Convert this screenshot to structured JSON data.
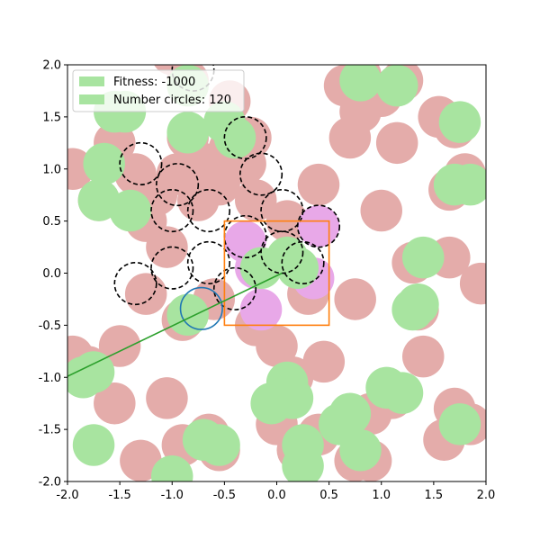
{
  "chart_data": {
    "type": "scatter",
    "title": "",
    "xlabel": "",
    "ylabel": "",
    "xlim": [
      -2.0,
      2.0
    ],
    "ylim": [
      -2.0,
      2.0
    ],
    "grid": false,
    "legend_position": "top-left",
    "legend": [
      {
        "label": "Fitness: -1000",
        "color": "#a8e4a0"
      },
      {
        "label": "Number circles: 120",
        "color": "#a8e4a0"
      }
    ],
    "x_ticks": [
      "-2.0",
      "-1.5",
      "-1.0",
      "-0.5",
      "0.0",
      "0.5",
      "1.0",
      "1.5",
      "2.0"
    ],
    "y_ticks": [
      "2.0",
      "1.5",
      "1.0",
      "0.5",
      "0.0",
      "-0.5",
      "-1.0",
      "-1.5",
      "-2.0"
    ],
    "x_tick_values": [
      -2.0,
      -1.5,
      -1.0,
      -0.5,
      0.0,
      0.5,
      1.0,
      1.5,
      2.0
    ],
    "y_tick_values": [
      2.0,
      1.5,
      1.0,
      0.5,
      0.0,
      -0.5,
      -1.0,
      -1.5,
      -2.0
    ],
    "colors": {
      "red_circle": "#e4acaa",
      "green_circle": "#a8e4a0",
      "violet_circle": "#e8a8e8",
      "box": "#ff7f0e",
      "agent": "#1f77b4",
      "heading": "#2ca02c",
      "dashed": "#000000"
    },
    "circle_radius": 0.2,
    "red_circles": [
      [
        -1.95,
        1.0
      ],
      [
        -1.7,
        0.7
      ],
      [
        -1.55,
        1.25
      ],
      [
        -1.35,
        0.95
      ],
      [
        -1.15,
        0.75
      ],
      [
        -1.25,
        0.5
      ],
      [
        -0.85,
        1.3
      ],
      [
        -0.7,
        1.05
      ],
      [
        -0.95,
        0.95
      ],
      [
        -0.55,
        0.85
      ],
      [
        -0.75,
        0.7
      ],
      [
        -0.45,
        1.2
      ],
      [
        -0.3,
        1.05
      ],
      [
        -0.25,
        1.3
      ],
      [
        -0.45,
        1.65
      ],
      [
        -0.85,
        1.85
      ],
      [
        -1.0,
        2.1
      ],
      [
        -0.2,
        0.7
      ],
      [
        -1.05,
        0.25
      ],
      [
        -1.25,
        -0.2
      ],
      [
        -0.9,
        -0.45
      ],
      [
        -0.2,
        -0.5
      ],
      [
        0.0,
        -0.7
      ],
      [
        -1.8,
        -0.9
      ],
      [
        -1.5,
        -0.7
      ],
      [
        -1.95,
        -0.8
      ],
      [
        -1.55,
        -1.25
      ],
      [
        -1.05,
        -1.2
      ],
      [
        -0.9,
        -1.65
      ],
      [
        -0.65,
        -1.55
      ],
      [
        -1.3,
        -1.8
      ],
      [
        -0.55,
        -1.7
      ],
      [
        0.0,
        -1.45
      ],
      [
        0.15,
        -1.0
      ],
      [
        0.45,
        -0.85
      ],
      [
        0.2,
        -1.7
      ],
      [
        0.4,
        -1.55
      ],
      [
        0.65,
        -1.45
      ],
      [
        0.75,
        -1.8
      ],
      [
        0.9,
        -1.35
      ],
      [
        1.1,
        -1.2
      ],
      [
        0.9,
        -1.8
      ],
      [
        1.4,
        -0.8
      ],
      [
        1.35,
        -0.35
      ],
      [
        1.6,
        -1.6
      ],
      [
        1.7,
        -1.3
      ],
      [
        1.85,
        -1.45
      ],
      [
        1.65,
        0.15
      ],
      [
        1.95,
        -0.1
      ],
      [
        1.3,
        0.1
      ],
      [
        1.55,
        1.5
      ],
      [
        1.7,
        1.4
      ],
      [
        1.65,
        0.8
      ],
      [
        1.8,
        0.95
      ],
      [
        0.7,
        1.3
      ],
      [
        0.8,
        1.55
      ],
      [
        0.8,
        1.9
      ],
      [
        1.0,
        1.7
      ],
      [
        1.2,
        1.85
      ],
      [
        1.15,
        1.25
      ],
      [
        0.65,
        1.8
      ],
      [
        1.0,
        0.6
      ],
      [
        0.4,
        0.85
      ],
      [
        0.75,
        -0.25
      ],
      [
        -0.6,
        -0.25
      ],
      [
        0.3,
        -0.2
      ],
      [
        0.1,
        0.5
      ]
    ],
    "green_circles": [
      [
        -1.65,
        1.05
      ],
      [
        -1.55,
        1.55
      ],
      [
        -1.45,
        1.55
      ],
      [
        -1.7,
        0.7
      ],
      [
        -1.4,
        0.6
      ],
      [
        -0.85,
        1.8
      ],
      [
        -0.85,
        1.35
      ],
      [
        -0.5,
        1.45
      ],
      [
        -0.4,
        1.3
      ],
      [
        -0.85,
        -0.4
      ],
      [
        -1.85,
        -1.0
      ],
      [
        -1.75,
        -0.95
      ],
      [
        -1.75,
        -1.65
      ],
      [
        -1.0,
        -1.95
      ],
      [
        -0.7,
        -1.6
      ],
      [
        -0.55,
        -1.65
      ],
      [
        -0.05,
        -1.25
      ],
      [
        0.1,
        -1.05
      ],
      [
        0.15,
        -1.2
      ],
      [
        0.25,
        -1.65
      ],
      [
        0.25,
        -1.85
      ],
      [
        0.6,
        -1.45
      ],
      [
        0.7,
        -1.35
      ],
      [
        0.8,
        -1.7
      ],
      [
        1.05,
        -1.1
      ],
      [
        1.2,
        -1.15
      ],
      [
        1.3,
        -0.35
      ],
      [
        1.35,
        -0.3
      ],
      [
        1.4,
        0.15
      ],
      [
        1.75,
        -1.45
      ],
      [
        1.85,
        0.85
      ],
      [
        1.7,
        0.85
      ],
      [
        1.75,
        1.45
      ],
      [
        0.8,
        1.85
      ],
      [
        1.15,
        1.8
      ],
      [
        0.1,
        0.15
      ],
      [
        0.2,
        0.05
      ],
      [
        -0.15,
        0.05
      ]
    ],
    "violet_circles": [
      [
        -0.3,
        0.3
      ],
      [
        0.4,
        0.45
      ],
      [
        -0.2,
        0.05
      ],
      [
        -0.15,
        -0.35
      ],
      [
        0.35,
        -0.05
      ]
    ],
    "dashed_circles": [
      [
        -1.35,
        -0.1
      ],
      [
        -1.0,
        0.05
      ],
      [
        -0.65,
        0.1
      ],
      [
        -0.4,
        -0.15
      ],
      [
        -0.3,
        0.35
      ],
      [
        -0.65,
        0.6
      ],
      [
        -1.0,
        0.6
      ],
      [
        -0.95,
        0.85
      ],
      [
        -1.3,
        1.05
      ],
      [
        -0.3,
        1.3
      ],
      [
        -0.15,
        0.95
      ],
      [
        0.05,
        0.6
      ],
      [
        0.4,
        0.45
      ],
      [
        0.05,
        0.2
      ],
      [
        0.25,
        0.1
      ],
      [
        -0.8,
        1.95
      ]
    ],
    "box": {
      "x": [
        -0.5,
        0.5
      ],
      "y": [
        -0.5,
        0.5
      ]
    },
    "agent": {
      "center": [
        -0.72,
        -0.34
      ],
      "radius": 0.2
    },
    "heading_line": {
      "x": [
        -2.0,
        0.05
      ],
      "y": [
        -0.99,
        0.0
      ]
    }
  }
}
